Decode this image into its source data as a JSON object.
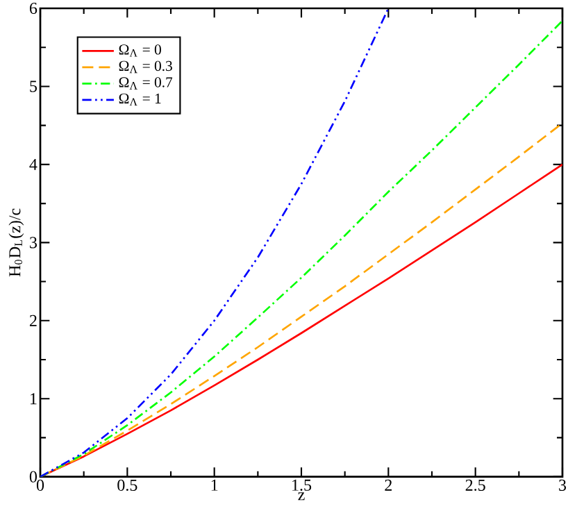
{
  "chart_data": {
    "type": "line",
    "xlabel": "z",
    "ylabel": "H$_{0}$D$_{L}$(z)/c",
    "x": [
      0,
      0.25,
      0.5,
      0.75,
      1,
      1.25,
      1.5,
      1.75,
      2,
      2.25,
      2.5,
      2.75,
      3
    ],
    "series": [
      {
        "name": "Ω$_{Λ}$ = 0",
        "color": "#ff0000",
        "line_style": "solid",
        "values": [
          0,
          0.26,
          0.55,
          0.85,
          1.17,
          1.5,
          1.84,
          2.19,
          2.54,
          2.9,
          3.26,
          3.63,
          4
        ]
      },
      {
        "name": "Ω$_{Λ}$ = 0.3",
        "color": "#ffa500",
        "line_style": "dashed",
        "values": [
          0,
          0.27,
          0.59,
          0.93,
          1.29,
          1.66,
          2.05,
          2.44,
          2.85,
          3.26,
          3.68,
          4.1,
          4.53
        ]
      },
      {
        "name": "Ω$_{Λ}$ = 0.7",
        "color": "#00ff00",
        "line_style": "dashdot",
        "values": [
          0,
          0.29,
          0.66,
          1.08,
          1.54,
          2.04,
          2.55,
          3.09,
          3.65,
          4.18,
          4.73,
          5.28,
          5.84
        ]
      },
      {
        "name": "Ω$_{Λ}$ = 1",
        "color": "#0000ff",
        "line_style": "dashdotdot",
        "values": [
          0,
          0.31,
          0.75,
          1.31,
          2,
          2.81,
          3.75,
          4.81,
          6,
          null,
          null,
          null,
          null
        ]
      }
    ],
    "xlim": [
      0,
      3
    ],
    "ylim": [
      0,
      6
    ],
    "xticks": [
      0,
      0.5,
      1,
      1.5,
      2,
      2.5,
      3
    ],
    "yticks": [
      0,
      1,
      2,
      3,
      4,
      5,
      6
    ],
    "grid": false,
    "legend": "top left",
    "marker": "none"
  }
}
